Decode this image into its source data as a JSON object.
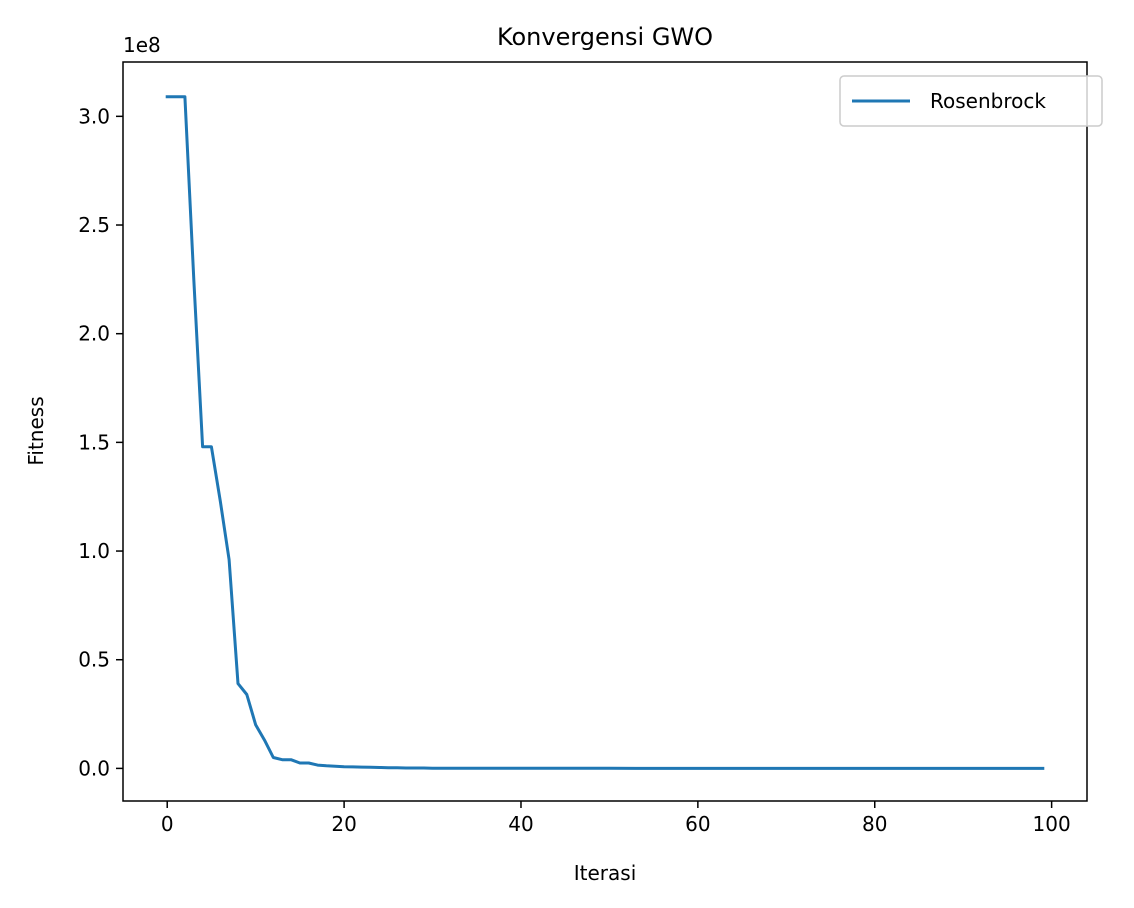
{
  "chart_data": {
    "type": "line",
    "title": "Konvergensi GWO",
    "xlabel": "Iterasi",
    "ylabel": "Fitness",
    "offset_text": "1e8",
    "xlim": [
      -5,
      104
    ],
    "ylim": [
      -0.15,
      3.25
    ],
    "xticks": [
      0,
      20,
      40,
      60,
      80,
      100
    ],
    "yticks": [
      0.0,
      0.5,
      1.0,
      1.5,
      2.0,
      2.5,
      3.0
    ],
    "xtick_labels": [
      "0",
      "20",
      "40",
      "60",
      "80",
      "100"
    ],
    "ytick_labels": [
      "0.0",
      "0.5",
      "1.0",
      "1.5",
      "2.0",
      "2.5",
      "3.0"
    ],
    "grid": false,
    "legend_position": "upper right",
    "series": [
      {
        "name": "Rosenbrock",
        "color": "#1f77b4",
        "x": [
          0,
          1,
          2,
          3,
          4,
          5,
          6,
          7,
          8,
          9,
          10,
          11,
          12,
          13,
          14,
          15,
          16,
          17,
          18,
          19,
          20,
          21,
          22,
          23,
          24,
          25,
          26,
          27,
          28,
          29,
          30,
          35,
          40,
          50,
          60,
          70,
          80,
          90,
          99
        ],
        "y": [
          3.09,
          3.09,
          3.09,
          2.25,
          1.48,
          1.48,
          1.23,
          0.96,
          0.39,
          0.34,
          0.2,
          0.13,
          0.05,
          0.04,
          0.04,
          0.025,
          0.025,
          0.015,
          0.012,
          0.01,
          0.008,
          0.007,
          0.006,
          0.005,
          0.004,
          0.003,
          0.003,
          0.002,
          0.002,
          0.002,
          0.001,
          0.001,
          0.0005,
          0.0003,
          0.0002,
          0.0001,
          0.0001,
          0.0001,
          0.0001
        ]
      }
    ]
  }
}
